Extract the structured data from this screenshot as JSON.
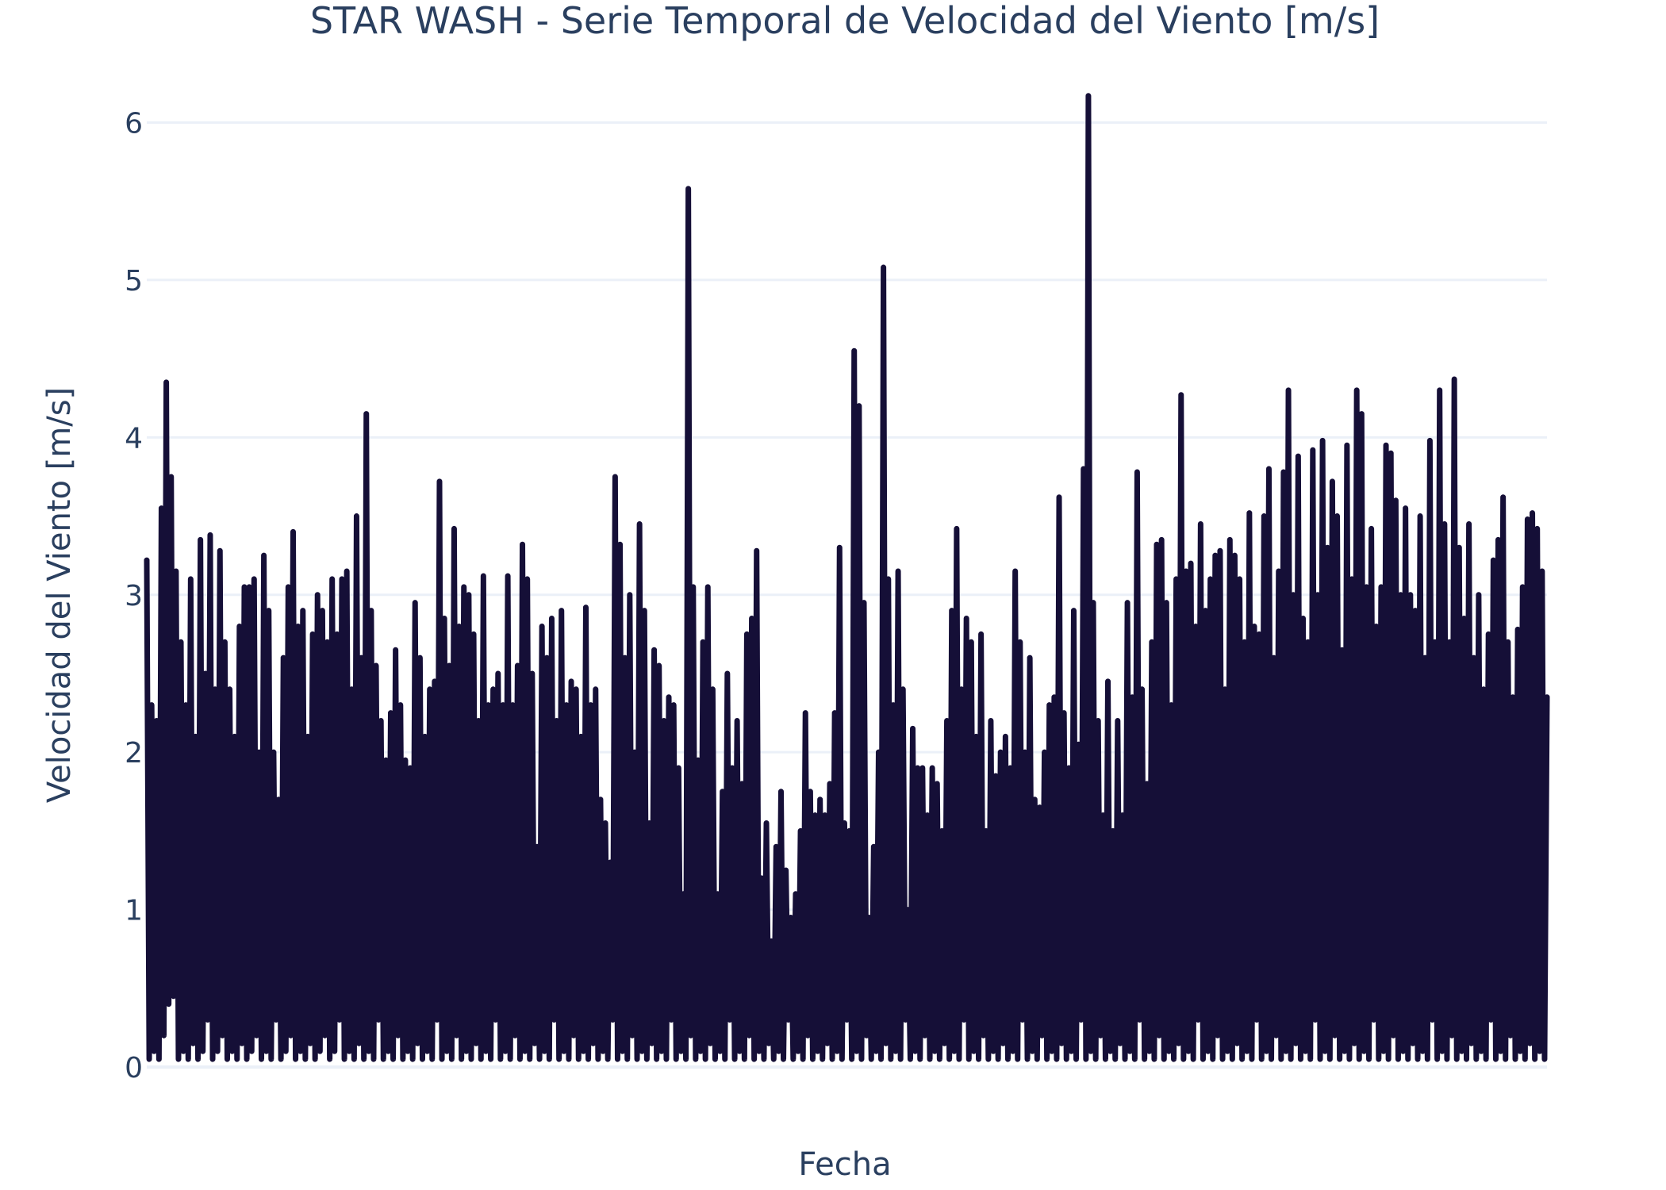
{
  "colors": {
    "background": "#ffffff",
    "grid": "#ebf0f8",
    "text": "#2a3f5f",
    "series": "#150f37"
  },
  "chart_data": {
    "type": "line",
    "title": "STAR WASH - Serie Temporal de Velocidad del Viento [m/s]",
    "xlabel": "Fecha",
    "ylabel": "Velocidad del Viento [m/s]",
    "x_tick_labels": [],
    "ylim": [
      0,
      6.3
    ],
    "y_ticks": [
      0,
      1,
      2,
      3,
      4,
      5,
      6
    ],
    "grid": "horizontal",
    "legend": "none",
    "series": [
      {
        "values": [
          3.22,
          0.05,
          2.3,
          0.1,
          2.2,
          0.05,
          3.55,
          0.2,
          4.35,
          0.4,
          3.75,
          0.45,
          3.15,
          0.05,
          2.7,
          0.1,
          2.3,
          0.05,
          3.1,
          0.15,
          2.1,
          0.05,
          3.35,
          0.1,
          2.5,
          0.3,
          3.38,
          0.05,
          2.4,
          0.1,
          3.28,
          0.2,
          2.7,
          0.05,
          2.4,
          0.1,
          2.1,
          0.05,
          2.8,
          0.15,
          3.05,
          0.05,
          3.05,
          0.1,
          3.1,
          0.2,
          2.0,
          0.05,
          3.25,
          0.1,
          2.9,
          0.05,
          2.0,
          0.3,
          1.7,
          0.05,
          2.6,
          0.1,
          3.05,
          0.2,
          3.4,
          0.05,
          2.8,
          0.1,
          2.9,
          0.05,
          2.1,
          0.15,
          2.75,
          0.05,
          3.0,
          0.1,
          2.9,
          0.2,
          2.7,
          0.05,
          3.1,
          0.1,
          2.75,
          0.3,
          3.1,
          0.05,
          3.15,
          0.1,
          2.4,
          0.05,
          3.5,
          0.15,
          2.6,
          0.05,
          4.15,
          0.1,
          2.9,
          0.05,
          2.55,
          0.3,
          2.2,
          0.05,
          1.95,
          0.1,
          2.25,
          0.05,
          2.65,
          0.2,
          2.3,
          0.05,
          1.95,
          0.1,
          1.9,
          0.05,
          2.95,
          0.15,
          2.6,
          0.05,
          2.1,
          0.1,
          2.4,
          0.05,
          2.45,
          0.3,
          3.72,
          0.05,
          2.85,
          0.1,
          2.55,
          0.05,
          3.42,
          0.2,
          2.8,
          0.05,
          3.05,
          0.1,
          3.0,
          0.05,
          2.75,
          0.15,
          2.2,
          0.05,
          3.12,
          0.1,
          2.3,
          0.05,
          2.4,
          0.3,
          2.5,
          0.05,
          2.3,
          0.1,
          3.12,
          0.05,
          2.3,
          0.2,
          2.55,
          0.05,
          3.32,
          0.1,
          3.1,
          0.05,
          2.5,
          0.15,
          1.4,
          0.05,
          2.8,
          0.1,
          2.6,
          0.05,
          2.85,
          0.3,
          2.2,
          0.05,
          2.9,
          0.1,
          2.3,
          0.05,
          2.45,
          0.2,
          2.4,
          0.05,
          2.1,
          0.1,
          2.92,
          0.05,
          2.3,
          0.15,
          2.4,
          0.05,
          1.7,
          0.1,
          1.55,
          0.05,
          1.3,
          0.3,
          3.75,
          0.05,
          3.32,
          0.1,
          2.6,
          0.05,
          3.0,
          0.2,
          2.0,
          0.05,
          3.45,
          0.1,
          2.9,
          0.05,
          1.55,
          0.15,
          2.65,
          0.05,
          2.55,
          0.1,
          2.2,
          0.05,
          2.35,
          0.3,
          2.3,
          0.05,
          1.9,
          0.1,
          1.1,
          0.05,
          5.58,
          0.2,
          3.05,
          0.05,
          1.95,
          0.1,
          2.7,
          0.05,
          3.05,
          0.15,
          2.4,
          0.05,
          1.1,
          0.1,
          1.75,
          0.05,
          2.5,
          0.3,
          1.9,
          0.05,
          2.2,
          0.1,
          1.8,
          0.05,
          2.75,
          0.2,
          2.85,
          0.05,
          3.28,
          0.1,
          1.2,
          0.05,
          1.55,
          0.15,
          0.8,
          0.05,
          1.4,
          0.1,
          1.75,
          0.05,
          1.25,
          0.3,
          0.95,
          0.05,
          1.1,
          0.1,
          1.5,
          0.05,
          2.25,
          0.2,
          1.75,
          0.05,
          1.6,
          0.1,
          1.7,
          0.05,
          1.6,
          0.15,
          1.8,
          0.05,
          2.25,
          0.1,
          3.3,
          0.05,
          1.55,
          0.3,
          1.5,
          0.05,
          4.55,
          0.1,
          4.2,
          0.05,
          2.95,
          0.2,
          0.95,
          0.05,
          1.4,
          0.1,
          2.0,
          0.05,
          5.08,
          0.15,
          3.1,
          0.05,
          2.3,
          0.1,
          3.15,
          0.05,
          2.4,
          0.3,
          1.0,
          0.05,
          2.15,
          0.1,
          1.9,
          0.05,
          1.9,
          0.2,
          1.6,
          0.05,
          1.9,
          0.1,
          1.8,
          0.05,
          1.5,
          0.15,
          2.2,
          0.05,
          2.9,
          0.1,
          3.42,
          0.05,
          2.4,
          0.3,
          2.85,
          0.05,
          2.7,
          0.1,
          2.1,
          0.05,
          2.75,
          0.2,
          1.5,
          0.05,
          2.2,
          0.1,
          1.85,
          0.05,
          2.0,
          0.15,
          2.1,
          0.05,
          1.9,
          0.1,
          3.15,
          0.05,
          2.7,
          0.3,
          2.0,
          0.05,
          2.6,
          0.1,
          1.7,
          0.05,
          1.65,
          0.2,
          2.0,
          0.05,
          2.3,
          0.1,
          2.35,
          0.05,
          3.62,
          0.15,
          2.25,
          0.05,
          1.9,
          0.1,
          2.9,
          0.05,
          2.05,
          0.3,
          3.8,
          0.05,
          6.17,
          0.1,
          2.95,
          0.05,
          2.2,
          0.2,
          1.6,
          0.05,
          2.45,
          0.1,
          1.5,
          0.05,
          2.2,
          0.15,
          1.6,
          0.05,
          2.95,
          0.1,
          2.35,
          0.05,
          3.78,
          0.3,
          2.4,
          0.05,
          1.8,
          0.1,
          2.7,
          0.05,
          3.32,
          0.2,
          3.35,
          0.05,
          2.95,
          0.1,
          2.3,
          0.05,
          3.1,
          0.15,
          4.27,
          0.05,
          3.15,
          0.1,
          3.2,
          0.05,
          2.8,
          0.3,
          3.45,
          0.05,
          2.9,
          0.1,
          3.1,
          0.05,
          3.25,
          0.2,
          3.28,
          0.05,
          2.4,
          0.1,
          3.35,
          0.05,
          3.25,
          0.15,
          3.1,
          0.05,
          2.7,
          0.1,
          3.52,
          0.05,
          2.8,
          0.3,
          2.75,
          0.05,
          3.5,
          0.1,
          3.8,
          0.05,
          2.6,
          0.2,
          3.15,
          0.05,
          3.78,
          0.1,
          4.3,
          0.05,
          3.0,
          0.15,
          3.88,
          0.05,
          2.85,
          0.1,
          2.7,
          0.05,
          3.92,
          0.3,
          3.0,
          0.05,
          3.98,
          0.1,
          3.3,
          0.05,
          3.72,
          0.2,
          3.5,
          0.05,
          2.65,
          0.1,
          3.95,
          0.05,
          3.1,
          0.15,
          4.3,
          0.05,
          4.15,
          0.1,
          3.05,
          0.05,
          3.42,
          0.3,
          2.8,
          0.05,
          3.05,
          0.1,
          3.95,
          0.05,
          3.9,
          0.2,
          3.6,
          0.05,
          3.0,
          0.1,
          3.55,
          0.05,
          3.0,
          0.15,
          2.9,
          0.05,
          3.5,
          0.1,
          2.6,
          0.05,
          3.98,
          0.3,
          2.7,
          0.05,
          4.3,
          0.1,
          3.45,
          0.05,
          2.7,
          0.2,
          4.37,
          0.05,
          3.3,
          0.1,
          2.85,
          0.05,
          3.45,
          0.15,
          2.6,
          0.05,
          3.0,
          0.1,
          2.4,
          0.05,
          2.75,
          0.3,
          3.22,
          0.05,
          3.35,
          0.1,
          3.62,
          0.05,
          2.7,
          0.2,
          2.35,
          0.05,
          2.78,
          0.1,
          3.05,
          0.05,
          3.48,
          0.15,
          3.52,
          0.05,
          3.42,
          0.1,
          3.15,
          0.05,
          2.35
        ]
      }
    ]
  }
}
